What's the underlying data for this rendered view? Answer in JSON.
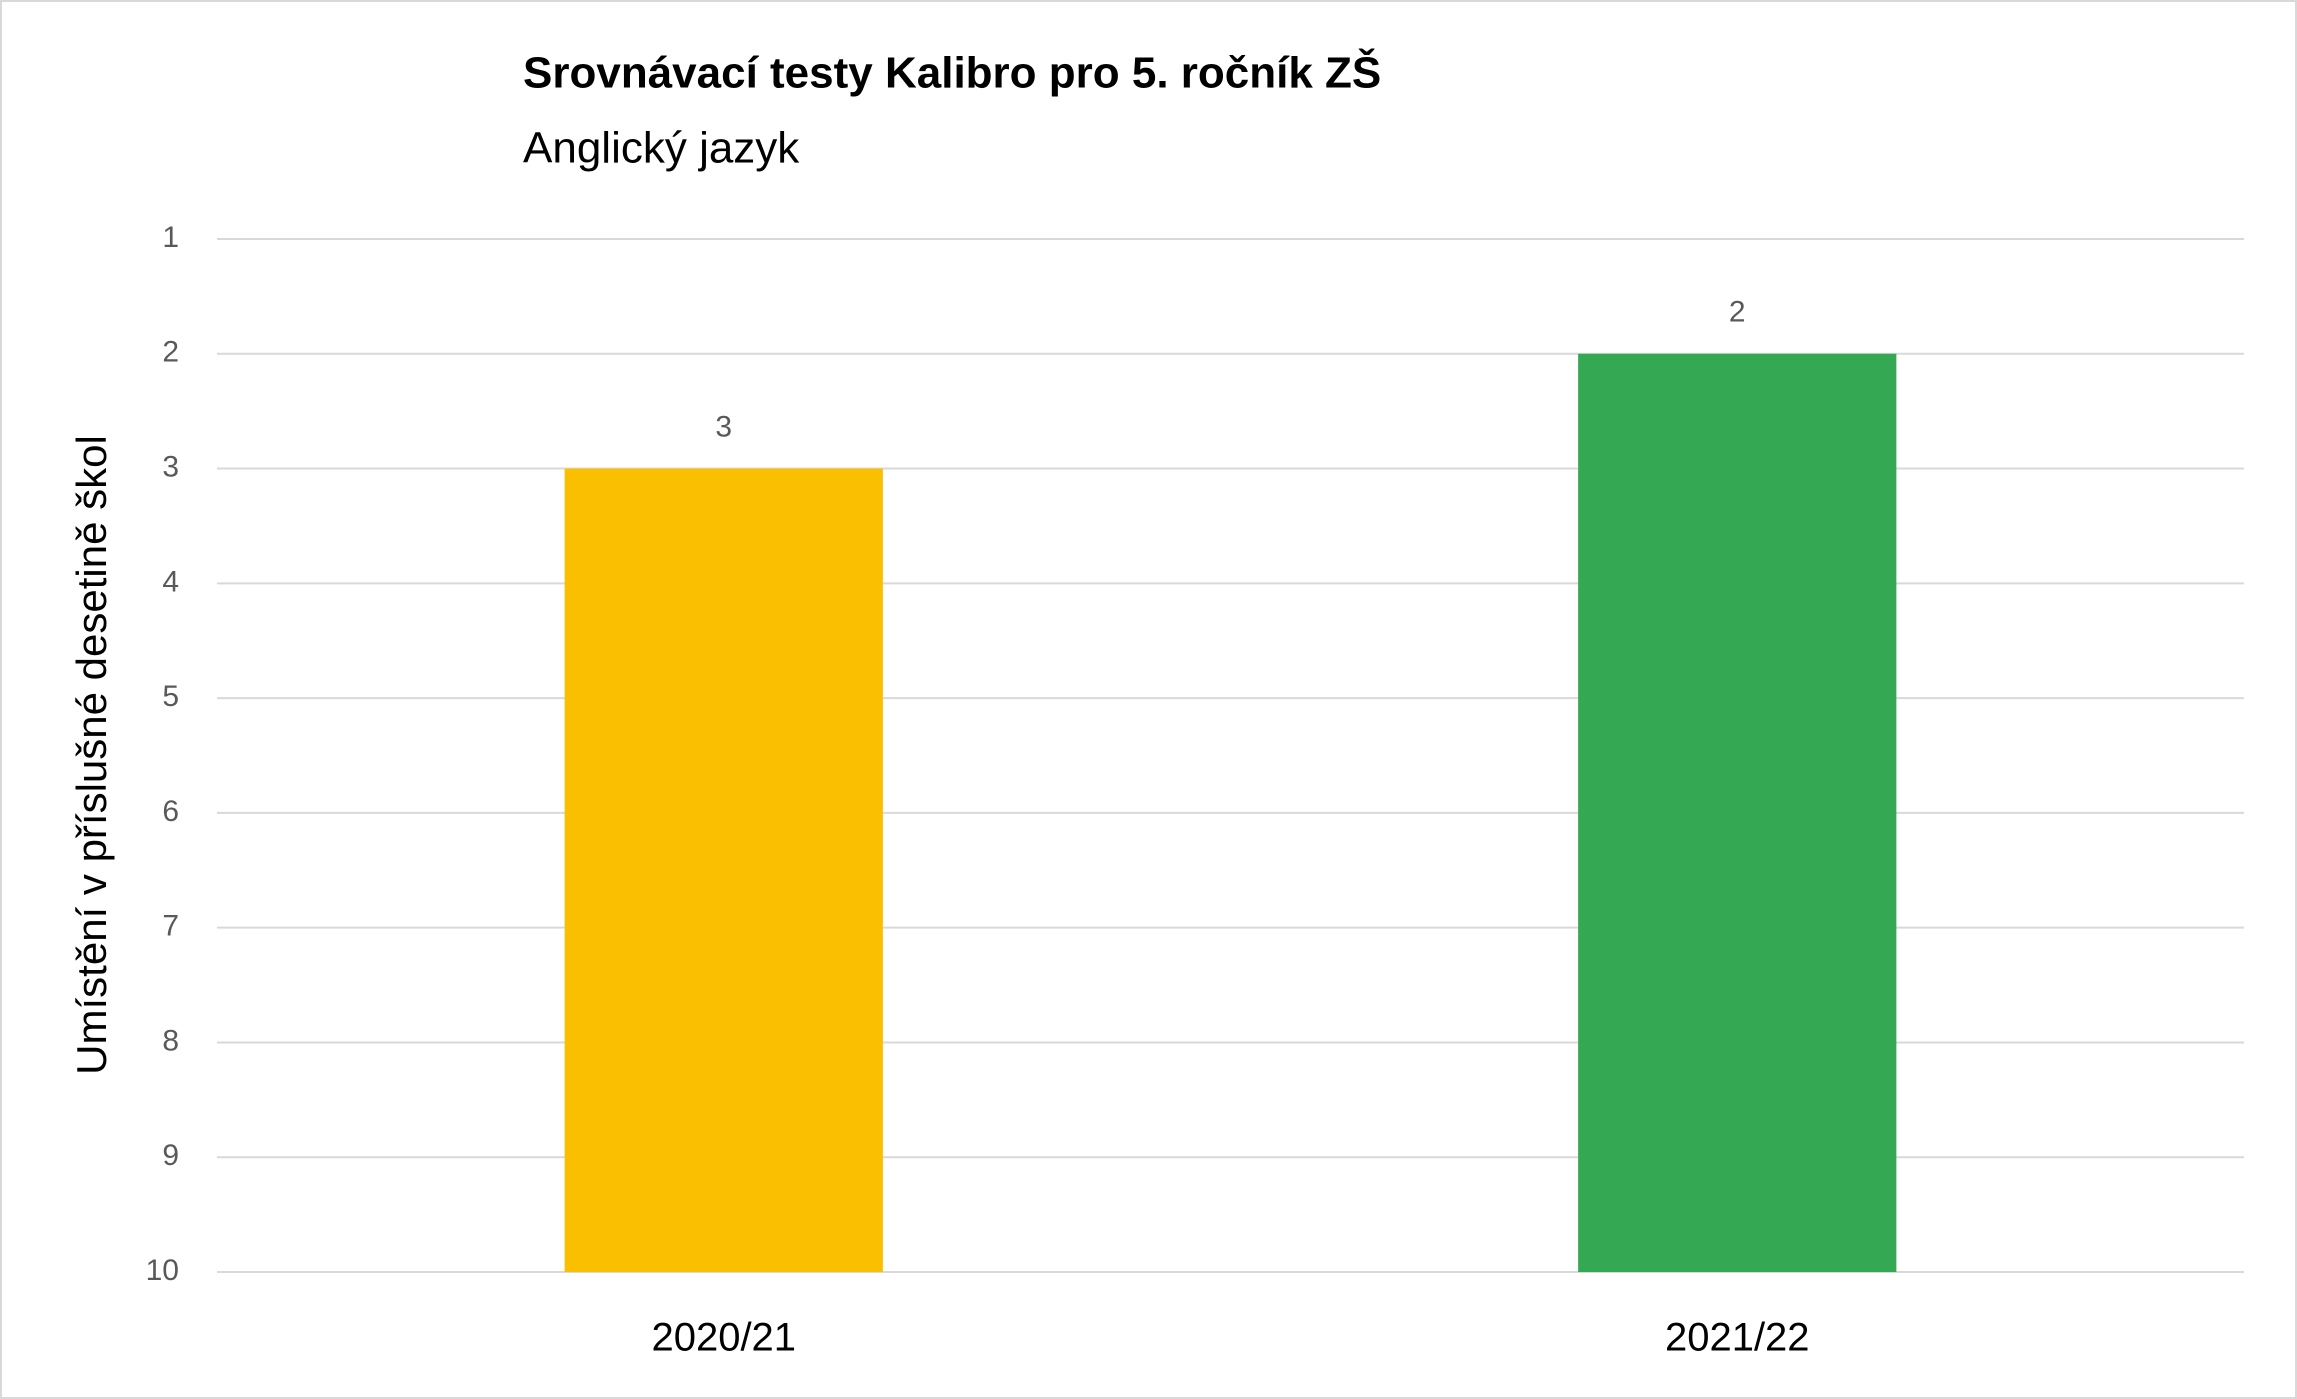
{
  "chart_data": {
    "type": "bar",
    "title": "Srovnávací testy Kalibro pro 5. ročník ZŠ",
    "subtitle": "Anglický jazyk",
    "y_label": "Umístění v příslušné desetině škol",
    "categories": [
      "2020/21",
      "2021/22"
    ],
    "values": [
      3,
      2
    ],
    "colors": [
      "#fabf00",
      "#34a853"
    ],
    "ylim": [
      10,
      1
    ],
    "yticks": [
      1,
      2,
      3,
      4,
      5,
      6,
      7,
      8,
      9,
      10
    ],
    "grid": true
  }
}
